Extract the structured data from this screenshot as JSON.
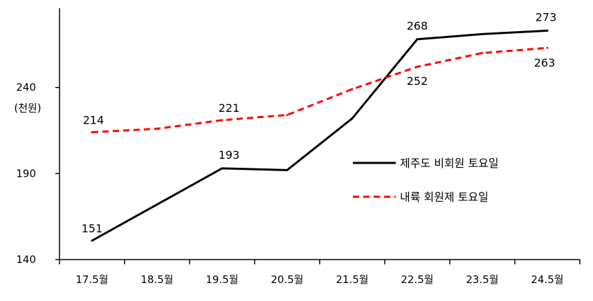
{
  "chart_data": {
    "type": "line",
    "title": "",
    "xlabel": "",
    "ylabel": "(천원)",
    "categories": [
      "17.5월",
      "18.5월",
      "19.5월",
      "20.5월",
      "21.5월",
      "22.5월",
      "23.5월",
      "24.5월"
    ],
    "yticks": [
      "140",
      "190",
      "240"
    ],
    "ylim": [
      140,
      286
    ],
    "grid": false,
    "legend_position": "right",
    "series": [
      {
        "name": "제주도 비회원 토요일",
        "color": "#000000",
        "style": "solid",
        "values": [
          151,
          172,
          193,
          192,
          222,
          268,
          271,
          273
        ],
        "labels": [
          "151",
          "",
          "193",
          "",
          "",
          "268",
          "",
          "273"
        ]
      },
      {
        "name": "내륙 회원제 토요일",
        "color": "#ff0000",
        "style": "dashed",
        "values": [
          214,
          216,
          221,
          224,
          239,
          252,
          260,
          263
        ],
        "labels": [
          "214",
          "",
          "221",
          "",
          "",
          "252",
          "",
          "263"
        ]
      }
    ]
  }
}
